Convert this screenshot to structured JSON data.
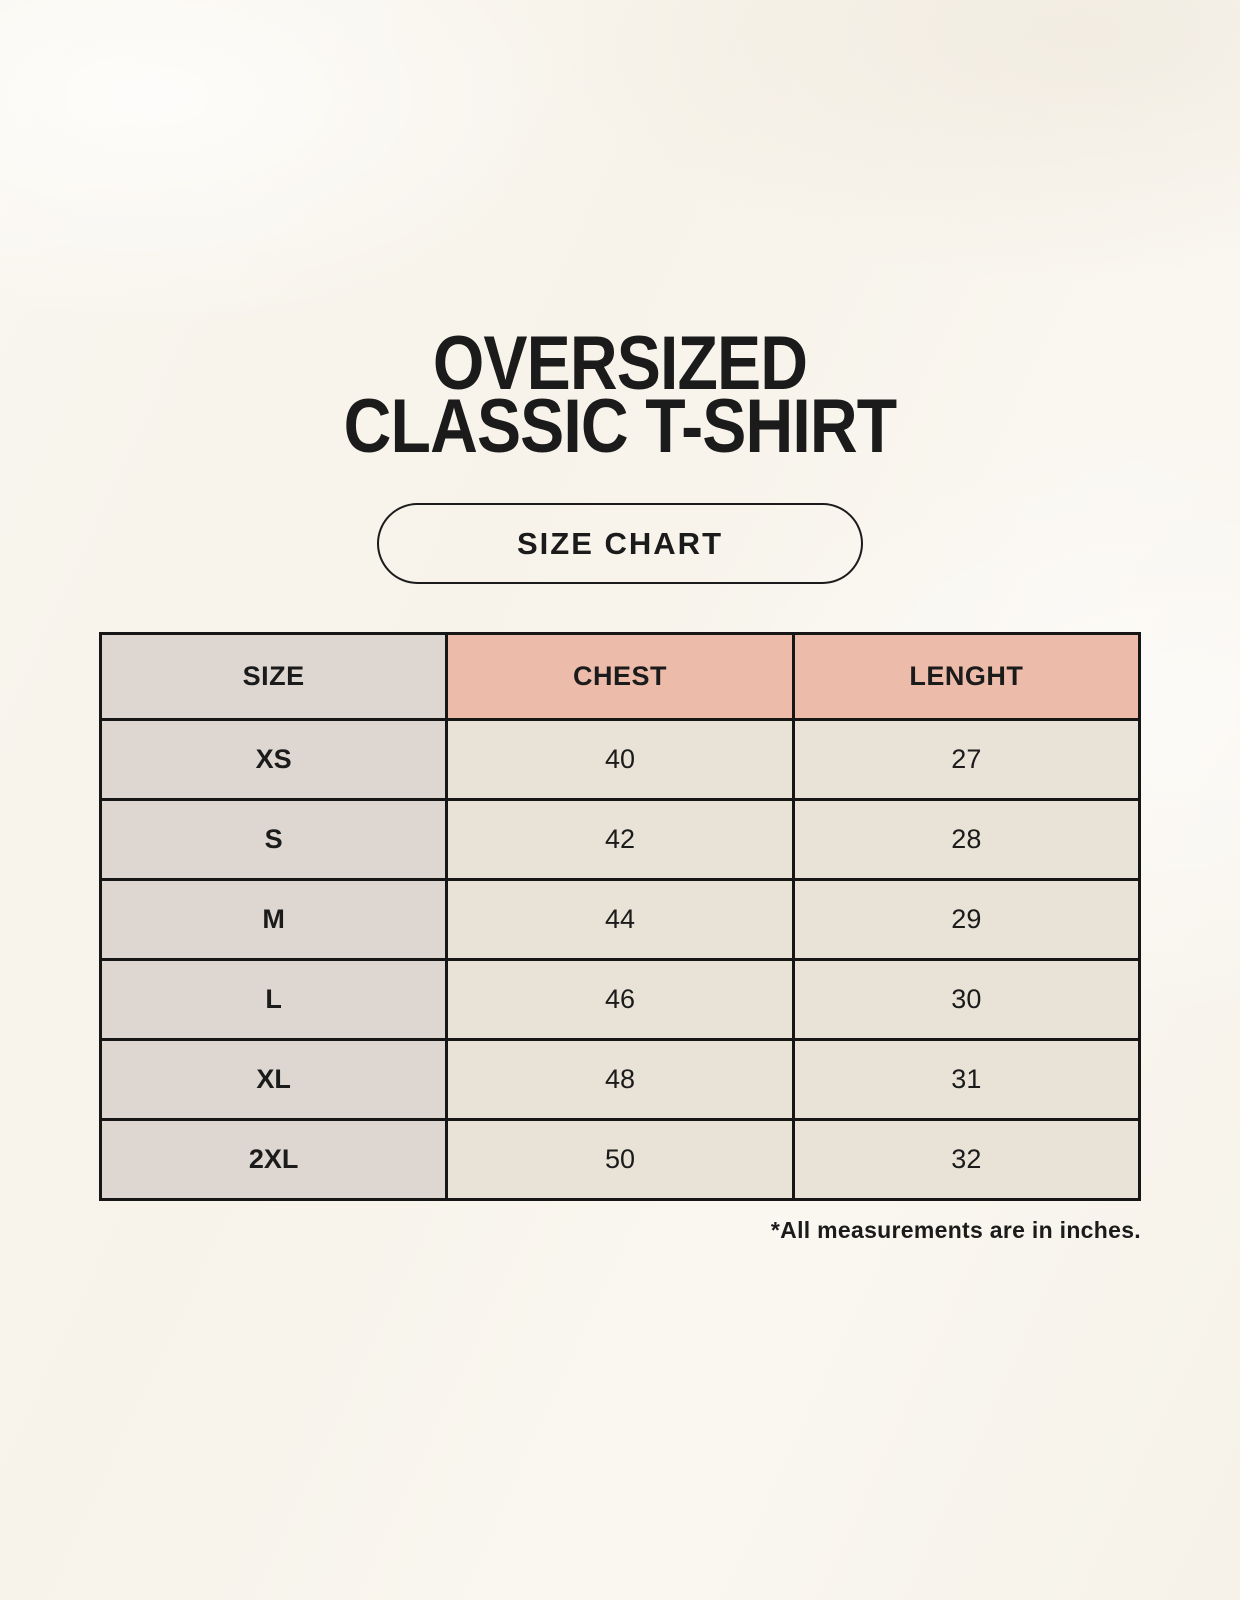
{
  "title": {
    "line1": "OVERSIZED",
    "line2": "CLASSIC T-SHIRT"
  },
  "size_chart_button_label": "SIZE CHART",
  "footnote": "*All measurements are in inches.",
  "colors": {
    "background": "#f8f5ee",
    "text": "#1b1b1b",
    "table_border": "#161616",
    "size_column_bg": "#ded7d1",
    "measure_header_bg": "#edbbaa",
    "data_cell_bg": "#e9e2d6"
  },
  "chart_data": {
    "type": "table",
    "title": "OVERSIZED CLASSIC T-SHIRT SIZE CHART",
    "units": "inches",
    "columns": [
      "SIZE",
      "CHEST",
      "LENGHT"
    ],
    "rows": [
      [
        "XS",
        40,
        27
      ],
      [
        "S",
        42,
        28
      ],
      [
        "M",
        44,
        29
      ],
      [
        "L",
        46,
        30
      ],
      [
        "XL",
        48,
        31
      ],
      [
        "2XL",
        50,
        32
      ]
    ]
  }
}
